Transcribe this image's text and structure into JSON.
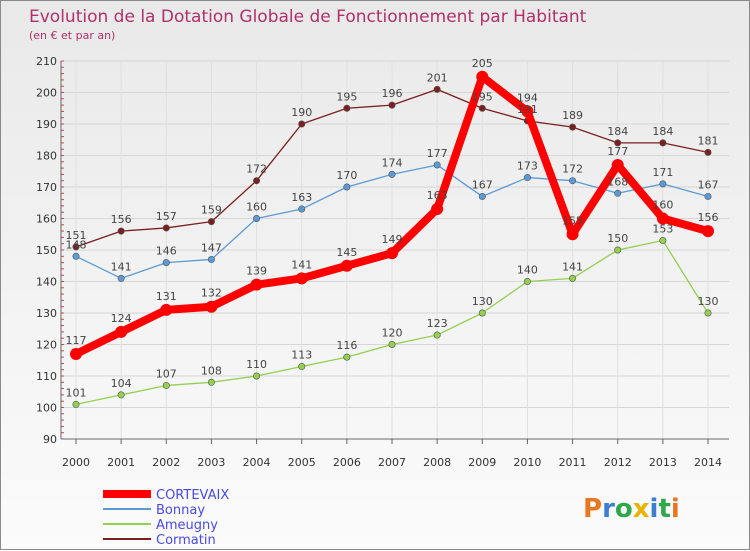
{
  "chart_data": {
    "type": "line",
    "title": "Evolution de la Dotation Globale de Fonctionnement par Habitant",
    "subtitle": "(en € et par an)",
    "x": [
      "2000",
      "2001",
      "2002",
      "2003",
      "2004",
      "2005",
      "2006",
      "2007",
      "2008",
      "2009",
      "2010",
      "2011",
      "2012",
      "2013",
      "2014"
    ],
    "ylim": [
      90,
      210
    ],
    "yticks": [
      90,
      100,
      110,
      120,
      130,
      140,
      150,
      160,
      170,
      180,
      190,
      200,
      210
    ],
    "grid": true,
    "legend_position": "bottom-left",
    "series": [
      {
        "name": "CORTEVAIX",
        "color": "#ff0000",
        "values": [
          117,
          124,
          131,
          132,
          139,
          141,
          145,
          149,
          163,
          205,
          194,
          155,
          177,
          160,
          156
        ]
      },
      {
        "name": "Bonnay",
        "color": "#5b9bd5",
        "values": [
          148,
          141,
          146,
          147,
          160,
          163,
          170,
          174,
          177,
          167,
          173,
          172,
          168,
          171,
          167
        ]
      },
      {
        "name": "Ameugny",
        "color": "#92d050",
        "values": [
          101,
          104,
          107,
          108,
          110,
          113,
          116,
          120,
          123,
          130,
          140,
          141,
          150,
          153,
          130
        ]
      },
      {
        "name": "Cormatin",
        "color": "#7b1f1f",
        "values": [
          151,
          156,
          157,
          159,
          172,
          190,
          195,
          196,
          201,
          195,
          191,
          189,
          184,
          184,
          181
        ]
      }
    ]
  },
  "logo": {
    "text": "Proxiti",
    "letters": [
      "P",
      "r",
      "o",
      "x",
      "i",
      "t",
      "i"
    ],
    "colors": [
      "#e87722",
      "#3a7fd0",
      "#2ea84a",
      "#e8b400",
      "#3a7fd0",
      "#2ea84a",
      "#e87722"
    ]
  }
}
